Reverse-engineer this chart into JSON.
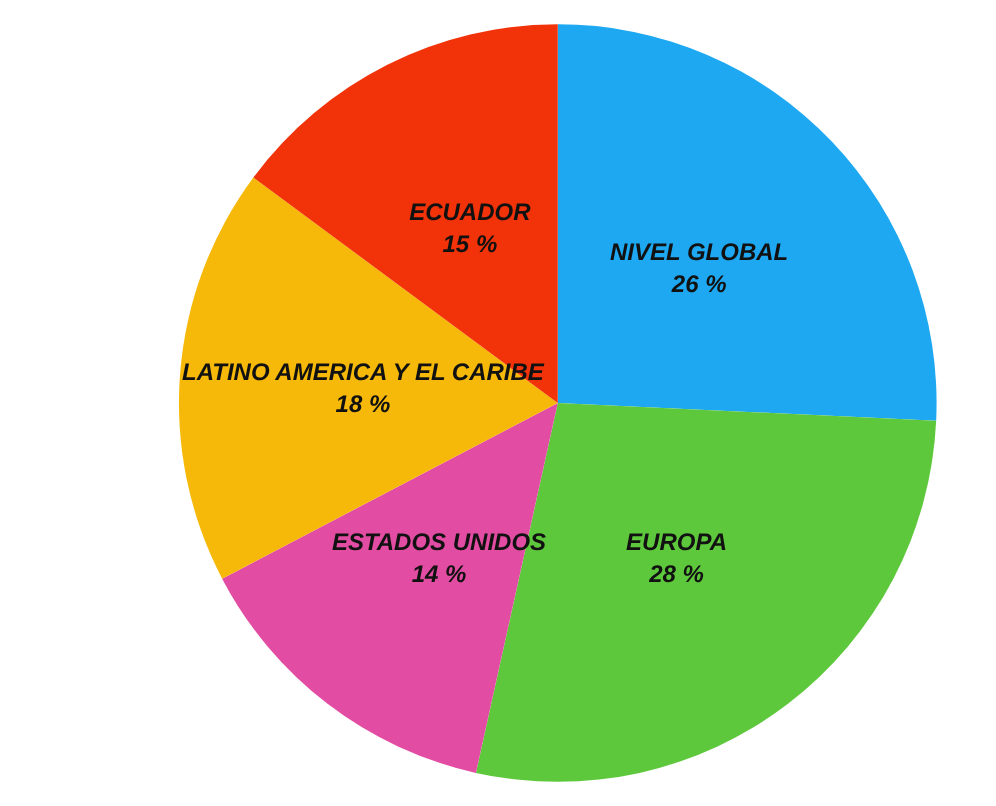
{
  "chart_data": {
    "type": "pie",
    "categories": [
      "NIVEL GLOBAL",
      "EUROPA",
      "ESTADOS UNIDOS",
      "LATINO AMERICA Y EL CARIBE",
      "ECUADOR"
    ],
    "values": [
      26,
      28,
      14,
      18,
      15
    ],
    "value_labels": [
      "26 %",
      "28 %",
      "14 %",
      "18 %",
      "15 %"
    ],
    "colors": [
      "#1ea8f2",
      "#5ec83c",
      "#e24ca2",
      "#f6b90a",
      "#f2330a"
    ]
  }
}
